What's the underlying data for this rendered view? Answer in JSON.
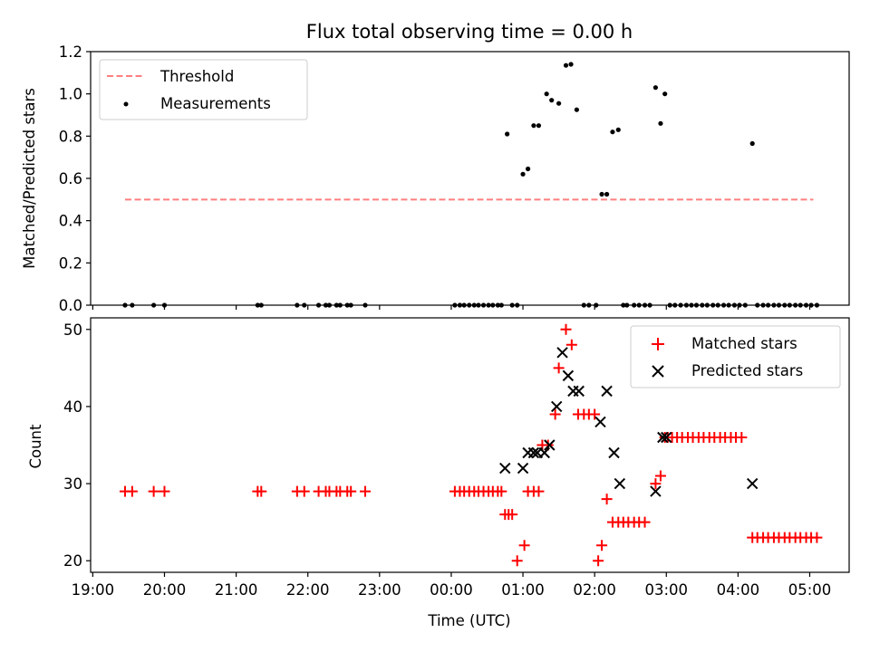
{
  "figure": {
    "title": "Flux total observing time = 0.00 h",
    "xlabel": "Time (UTC)",
    "x_ticks": [
      {
        "h": -5,
        "label": "19:00"
      },
      {
        "h": -4,
        "label": "20:00"
      },
      {
        "h": -3,
        "label": "21:00"
      },
      {
        "h": -2,
        "label": "22:00"
      },
      {
        "h": -1,
        "label": "23:00"
      },
      {
        "h": 0,
        "label": "00:00"
      },
      {
        "h": 1,
        "label": "01:00"
      },
      {
        "h": 2,
        "label": "02:00"
      },
      {
        "h": 3,
        "label": "03:00"
      },
      {
        "h": 4,
        "label": "04:00"
      },
      {
        "h": 5,
        "label": "05:00"
      }
    ],
    "xlim": [
      -5.03,
      5.55
    ]
  },
  "chart_data": [
    {
      "type": "scatter",
      "ylabel": "Matched/Predicted stars",
      "ylim": [
        0,
        1.2
      ],
      "y_ticks": [
        {
          "v": 0.0,
          "label": "0.0"
        },
        {
          "v": 0.2,
          "label": "0.2"
        },
        {
          "v": 0.4,
          "label": "0.4"
        },
        {
          "v": 0.6,
          "label": "0.6"
        },
        {
          "v": 0.8,
          "label": "0.8"
        },
        {
          "v": 1.0,
          "label": "1.0"
        },
        {
          "v": 1.2,
          "label": "1.2"
        }
      ],
      "legend_position": "top-left",
      "threshold": {
        "name": "Threshold",
        "y": 0.5,
        "x_range": [
          -4.55,
          5.05
        ],
        "color": "#ff7f7f"
      },
      "series": [
        {
          "name": "Measurements",
          "color": "#000000",
          "x": [
            -4.55,
            -4.45,
            -4.15,
            -4.0,
            -2.7,
            -2.65,
            -2.15,
            -2.05,
            -1.85,
            -1.75,
            -1.7,
            -1.6,
            -1.55,
            -1.45,
            -1.4,
            -1.2,
            0.05,
            0.12,
            0.18,
            0.25,
            0.32,
            0.38,
            0.45,
            0.52,
            0.58,
            0.65,
            0.7,
            0.85,
            0.92,
            0.78,
            1.0,
            1.07,
            1.15,
            1.22,
            1.33,
            1.4,
            1.5,
            1.6,
            1.67,
            1.75,
            1.85,
            1.92,
            2.02,
            2.1,
            2.17,
            2.25,
            2.33,
            2.4,
            2.45,
            2.55,
            2.62,
            2.7,
            2.77,
            2.85,
            2.92,
            2.98,
            3.05,
            3.12,
            3.2,
            3.28,
            3.35,
            3.42,
            3.5,
            3.57,
            3.65,
            3.72,
            3.8,
            3.87,
            3.95,
            4.02,
            4.1,
            4.2,
            4.27,
            4.35,
            4.42,
            4.5,
            4.57,
            4.65,
            4.72,
            4.8,
            4.87,
            4.95,
            5.02,
            5.1
          ],
          "y": [
            0,
            0,
            0,
            0,
            0,
            0,
            0,
            0,
            0,
            0,
            0,
            0,
            0,
            0,
            0,
            0,
            0,
            0,
            0,
            0,
            0,
            0,
            0,
            0,
            0,
            0,
            0,
            0,
            0,
            0.81,
            0.62,
            0.645,
            0.85,
            0.85,
            1.0,
            0.97,
            0.955,
            1.135,
            1.14,
            0.925,
            0,
            0,
            0,
            0.525,
            0.525,
            0.82,
            0.83,
            0,
            0,
            0,
            0,
            0,
            0,
            1.03,
            0.86,
            1.0,
            0,
            0,
            0,
            0,
            0,
            0,
            0,
            0,
            0,
            0,
            0,
            0,
            0,
            0,
            0,
            0.765,
            0,
            0,
            0,
            0,
            0,
            0,
            0,
            0,
            0,
            0,
            0,
            0
          ]
        }
      ]
    },
    {
      "type": "scatter",
      "ylabel": "Count",
      "ylim": [
        18.5,
        51.5
      ],
      "y_ticks": [
        {
          "v": 20,
          "label": "20"
        },
        {
          "v": 30,
          "label": "30"
        },
        {
          "v": 40,
          "label": "40"
        },
        {
          "v": 50,
          "label": "50"
        }
      ],
      "legend_position": "top-right",
      "series": [
        {
          "name": "Matched stars",
          "marker": "plus",
          "color": "#ff0000",
          "x": [
            -4.55,
            -4.45,
            -4.15,
            -4.0,
            -2.7,
            -2.65,
            -2.15,
            -2.05,
            -1.85,
            -1.75,
            -1.7,
            -1.6,
            -1.55,
            -1.45,
            -1.4,
            -1.2,
            0.05,
            0.12,
            0.18,
            0.25,
            0.32,
            0.38,
            0.45,
            0.52,
            0.58,
            0.65,
            0.7,
            0.75,
            0.8,
            0.85,
            0.92,
            1.02,
            1.07,
            1.15,
            1.22,
            1.27,
            1.35,
            1.45,
            1.5,
            1.6,
            1.68,
            1.77,
            1.85,
            1.92,
            2.0,
            2.05,
            2.1,
            2.17,
            2.25,
            2.33,
            2.4,
            2.47,
            2.55,
            2.62,
            2.7,
            2.85,
            2.92,
            2.98,
            3.02,
            3.08,
            3.15,
            3.22,
            3.3,
            3.37,
            3.45,
            3.52,
            3.6,
            3.67,
            3.75,
            3.82,
            3.9,
            3.97,
            4.05,
            4.2,
            4.27,
            4.35,
            4.42,
            4.5,
            4.57,
            4.65,
            4.72,
            4.8,
            4.87,
            4.95,
            5.02,
            5.1
          ],
          "y": [
            29,
            29,
            29,
            29,
            29,
            29,
            29,
            29,
            29,
            29,
            29,
            29,
            29,
            29,
            29,
            29,
            29,
            29,
            29,
            29,
            29,
            29,
            29,
            29,
            29,
            29,
            29,
            26,
            26,
            26,
            20,
            22,
            29,
            29,
            29,
            35,
            35,
            39,
            45,
            50,
            48,
            39,
            39,
            39,
            39,
            20,
            22,
            28,
            25,
            25,
            25,
            25,
            25,
            25,
            25,
            30,
            31,
            36,
            36,
            36,
            36,
            36,
            36,
            36,
            36,
            36,
            36,
            36,
            36,
            36,
            36,
            36,
            36,
            23,
            23,
            23,
            23,
            23,
            23,
            23,
            23,
            23,
            23,
            23,
            23,
            23
          ]
        },
        {
          "name": "Predicted stars",
          "marker": "x",
          "color": "#000000",
          "x": [
            0.75,
            1.0,
            1.07,
            1.15,
            1.2,
            1.3,
            1.37,
            1.47,
            1.55,
            1.63,
            1.7,
            1.78,
            2.08,
            2.17,
            2.27,
            2.35,
            2.85,
            2.95,
            3.0,
            4.2
          ],
          "y": [
            32,
            32,
            34,
            34,
            34,
            34,
            35,
            40,
            47,
            44,
            42,
            42,
            38,
            42,
            34,
            30,
            29,
            36,
            36,
            30
          ]
        }
      ]
    }
  ]
}
